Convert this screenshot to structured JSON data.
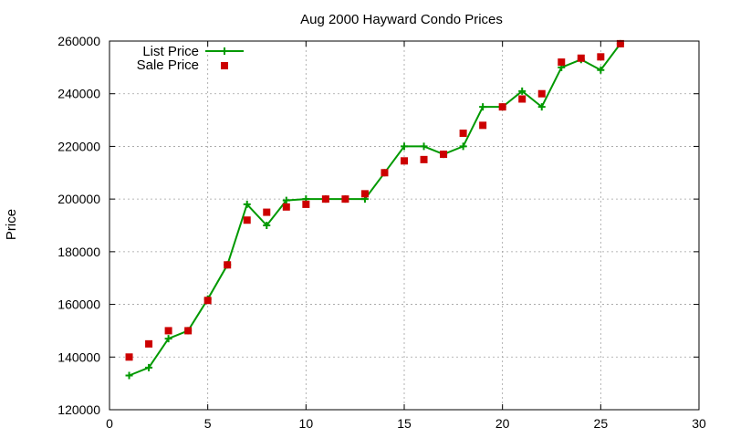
{
  "chart_data": {
    "type": "line",
    "title": "Aug 2000 Hayward Condo Prices",
    "xlabel": "",
    "ylabel": "Price",
    "xlim": [
      0,
      30
    ],
    "ylim": [
      120000,
      260000
    ],
    "x_ticks": [
      0,
      5,
      10,
      15,
      20,
      25,
      30
    ],
    "y_ticks": [
      120000,
      140000,
      160000,
      180000,
      200000,
      220000,
      240000,
      260000
    ],
    "grid": true,
    "legend_position": "top-left",
    "x": [
      1,
      2,
      3,
      4,
      5,
      6,
      7,
      8,
      9,
      10,
      11,
      12,
      13,
      14,
      15,
      16,
      17,
      18,
      19,
      20,
      21,
      22,
      23,
      24,
      25,
      26
    ],
    "series": [
      {
        "name": "List Price",
        "style": "line-with-plus-markers",
        "color": "#009900",
        "values": [
          133000,
          136000,
          147000,
          150000,
          162000,
          175000,
          198000,
          190000,
          199500,
          200000,
          200000,
          200000,
          200000,
          210000,
          220000,
          220000,
          217000,
          220000,
          235000,
          235000,
          241000,
          235000,
          250000,
          253000,
          249000,
          259000
        ]
      },
      {
        "name": "Sale Price",
        "style": "square-markers",
        "color": "#cc0000",
        "values": [
          140000,
          145000,
          150000,
          150000,
          161500,
          175000,
          192000,
          195000,
          197000,
          198000,
          200000,
          200000,
          202000,
          210000,
          214500,
          215000,
          217000,
          225000,
          228000,
          235000,
          238000,
          240000,
          252000,
          253500,
          254000,
          259000
        ]
      }
    ]
  }
}
